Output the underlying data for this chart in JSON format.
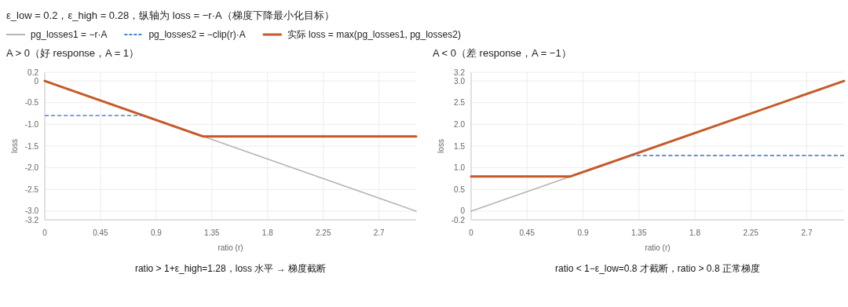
{
  "chart_data": [
    {
      "type": "line",
      "title": "ε_low = 0.2，ε_high = 0.28，纵轴为 loss = −r·A（梯度下降最小化目标）",
      "subtitle": "A > 0（好 response，A = 1）",
      "xlabel": "ratio (r)",
      "ylabel": "loss",
      "xlim": [
        0,
        3
      ],
      "xticks": [
        0,
        0.45,
        0.9,
        1.35,
        1.8,
        2.25,
        2.7
      ],
      "ylim": [
        -3.2,
        0.2
      ],
      "yticks": [
        -3.2,
        {
          "value": -3,
          "label": "-3.0"
        },
        -2.5,
        {
          "value": -2,
          "label": "-2.0"
        },
        -1.5,
        {
          "value": -1,
          "label": "-1.0"
        },
        -0.5,
        0,
        0.2
      ],
      "grid": true,
      "legend": "top",
      "marker": "none",
      "series": [
        {
          "name": "pg_losses1 = −r·A",
          "color": "#b8b4ae",
          "x": [
            1.28,
            3
          ],
          "values": [
            -1.28,
            -3
          ]
        },
        {
          "name": "pg_losses2 = −clip(r)·A",
          "color": "#4a86d0",
          "line_style": "dashed",
          "x": [
            0,
            0.8
          ],
          "values": [
            -0.8,
            -0.8
          ]
        },
        {
          "name": "实际 loss = max(pg_losses1, pg_losses2)",
          "color": "#c55a28",
          "x": [
            0,
            1.28,
            3
          ],
          "values": [
            0,
            -1.28,
            -1.28
          ]
        }
      ],
      "annotations": [
        "ratio > 1+ε_high=1.28，loss 水平 → 梯度截断"
      ]
    },
    {
      "type": "line",
      "title": "A < 0（差 response，A = −1）",
      "xlabel": "ratio (r)",
      "ylabel": "loss",
      "xlim": [
        0,
        3
      ],
      "xticks": [
        0,
        0.45,
        0.9,
        1.35,
        1.8,
        2.25,
        2.7
      ],
      "ylim": [
        -0.2,
        3.2
      ],
      "yticks": [
        -0.2,
        0,
        0.5,
        {
          "value": 1,
          "label": "1.0"
        },
        1.5,
        {
          "value": 2,
          "label": "2.0"
        },
        2.5,
        {
          "value": 3,
          "label": "3.0"
        },
        3.2
      ],
      "grid": true,
      "marker": "none",
      "series": [
        {
          "color": "#b8b4ae",
          "x": [
            0,
            0.8
          ],
          "values": [
            0,
            0.8
          ]
        },
        {
          "color": "#4a86d0",
          "line_style": "dashed",
          "x": [
            1.28,
            3
          ],
          "values": [
            1.28,
            1.28
          ]
        },
        {
          "color": "#c55a28",
          "x": [
            0,
            0.8,
            3
          ],
          "values": [
            0.8,
            0.8,
            3
          ]
        }
      ],
      "annotations": [
        "ratio < 1−ε_low=0.8 才截断，ratio > 0.8 正常梯度"
      ]
    }
  ]
}
